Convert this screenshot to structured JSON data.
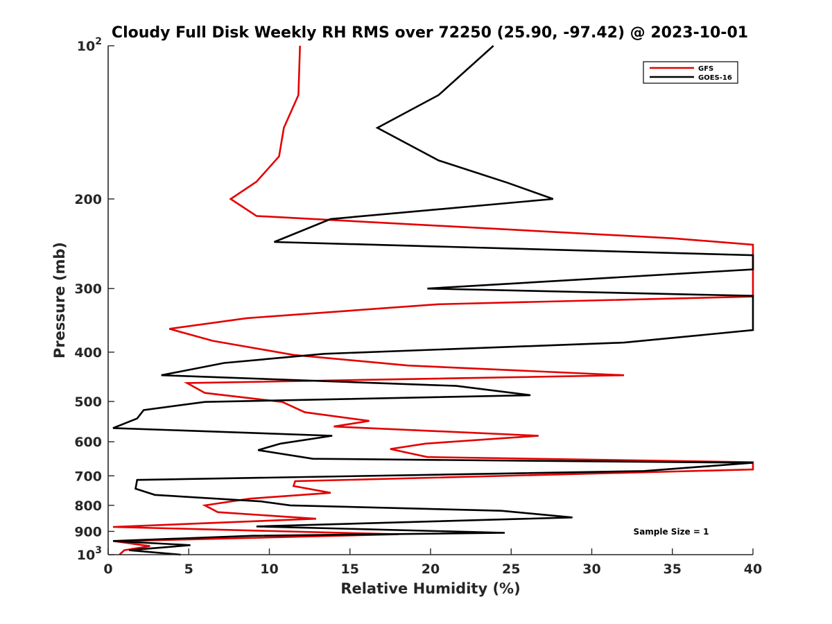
{
  "chart_data": {
    "type": "line",
    "title": "Cloudy Full Disk Weekly RH RMS over 72250 (25.90, -97.42) @ 2023-10-01",
    "xlabel": "Relative Humidity (%)",
    "ylabel": "Pressure (mb)",
    "xlim": [
      0,
      40
    ],
    "ylim": [
      100,
      1000
    ],
    "yscale": "log",
    "y_reversed": true,
    "grid": false,
    "legend_position": "top-right",
    "x_ticks": [
      0,
      5,
      10,
      15,
      20,
      25,
      30,
      35,
      40
    ],
    "x_tick_labels": [
      "0",
      "5",
      "10",
      "15",
      "20",
      "25",
      "30",
      "35",
      "40"
    ],
    "y_ticks": [
      100,
      200,
      300,
      400,
      500,
      600,
      700,
      800,
      900,
      1000
    ],
    "y_tick_labels": [
      {
        "base": "10",
        "exp": "2"
      },
      {
        "base": "200",
        "exp": ""
      },
      {
        "base": "300",
        "exp": ""
      },
      {
        "base": "400",
        "exp": ""
      },
      {
        "base": "500",
        "exp": ""
      },
      {
        "base": "600",
        "exp": ""
      },
      {
        "base": "700",
        "exp": ""
      },
      {
        "base": "800",
        "exp": ""
      },
      {
        "base": "900",
        "exp": ""
      },
      {
        "base": "10",
        "exp": "3"
      }
    ],
    "annotation": "Sample Size = 1",
    "series": [
      {
        "name": "GFS",
        "color": "#e30000",
        "points": [
          [
            11.9,
            100
          ],
          [
            11.8,
            125
          ],
          [
            10.9,
            145
          ],
          [
            10.6,
            165
          ],
          [
            9.2,
            185
          ],
          [
            7.6,
            200
          ],
          [
            9.2,
            216
          ],
          [
            35,
            239
          ],
          [
            40,
            246
          ],
          [
            40,
            311
          ],
          [
            20.5,
            322
          ],
          [
            8.6,
            343
          ],
          [
            3.8,
            360
          ],
          [
            6.5,
            380
          ],
          [
            11.5,
            405
          ],
          [
            18.6,
            425
          ],
          [
            32,
            444
          ],
          [
            4.9,
            460
          ],
          [
            6.0,
            481
          ],
          [
            10.8,
            501
          ],
          [
            12.2,
            525
          ],
          [
            16.2,
            546
          ],
          [
            14.0,
            560
          ],
          [
            26.7,
            584
          ],
          [
            19.7,
            605
          ],
          [
            17.5,
            620
          ],
          [
            19.8,
            643
          ],
          [
            40,
            658
          ],
          [
            40,
            680
          ],
          [
            11.6,
            717
          ],
          [
            11.5,
            733
          ],
          [
            13.8,
            756
          ],
          [
            8.8,
            776
          ],
          [
            6.0,
            800
          ],
          [
            6.8,
            825
          ],
          [
            12.9,
            850
          ],
          [
            0.3,
            882
          ],
          [
            18.0,
            912
          ],
          [
            0.4,
            941
          ],
          [
            2.6,
            962
          ],
          [
            1.0,
            980
          ],
          [
            0.7,
            1000
          ]
        ]
      },
      {
        "name": "GOES-16",
        "color": "#000000",
        "points": [
          [
            23.9,
            100
          ],
          [
            20.5,
            125
          ],
          [
            16.7,
            145
          ],
          [
            20.5,
            168
          ],
          [
            24.8,
            186
          ],
          [
            27.6,
            200
          ],
          [
            13.8,
            219
          ],
          [
            10.3,
            243
          ],
          [
            40,
            258
          ],
          [
            40,
            275
          ],
          [
            19.8,
            300
          ],
          [
            40,
            310
          ],
          [
            40,
            362
          ],
          [
            32.0,
            383
          ],
          [
            13.4,
            403
          ],
          [
            7.2,
            420
          ],
          [
            3.3,
            444
          ],
          [
            21.6,
            466
          ],
          [
            26.2,
            486
          ],
          [
            6.0,
            501
          ],
          [
            2.2,
            520
          ],
          [
            1.8,
            540
          ],
          [
            0.3,
            564
          ],
          [
            13.9,
            584
          ],
          [
            10.7,
            605
          ],
          [
            9.3,
            623
          ],
          [
            12.7,
            648
          ],
          [
            40,
            660
          ],
          [
            33.2,
            685
          ],
          [
            1.8,
            713
          ],
          [
            1.7,
            742
          ],
          [
            2.9,
            763
          ],
          [
            9.5,
            786
          ],
          [
            11.3,
            800
          ],
          [
            24.4,
            820
          ],
          [
            28.8,
            845
          ],
          [
            9.2,
            880
          ],
          [
            24.6,
            906
          ],
          [
            9.0,
            918
          ],
          [
            0.3,
            940
          ],
          [
            5.1,
            958
          ],
          [
            1.3,
            980
          ],
          [
            4.5,
            1000
          ]
        ]
      }
    ]
  }
}
